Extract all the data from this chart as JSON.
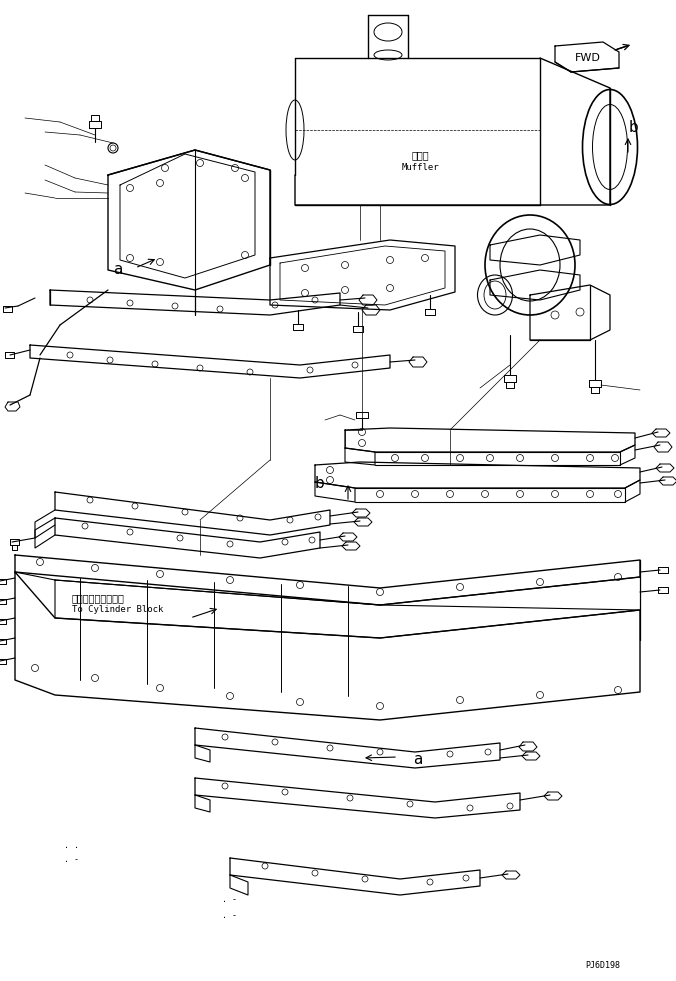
{
  "bg_color": "#ffffff",
  "line_color": "#000000",
  "fig_width": 6.76,
  "fig_height": 9.81,
  "dpi": 100,
  "label_fwd": "FWD",
  "label_muffler_ja": "マフラ",
  "label_muffler_en": "Muffler",
  "label_cylinder_ja": "シリンダブロックへ",
  "label_cylinder_en": "To Cylinder Block",
  "label_a": "a",
  "label_b": "b",
  "part_number": "PJ6D198",
  "font_size_small": 6,
  "font_size_label": 9,
  "font_size_jp": 7,
  "font_size_en": 6.5
}
